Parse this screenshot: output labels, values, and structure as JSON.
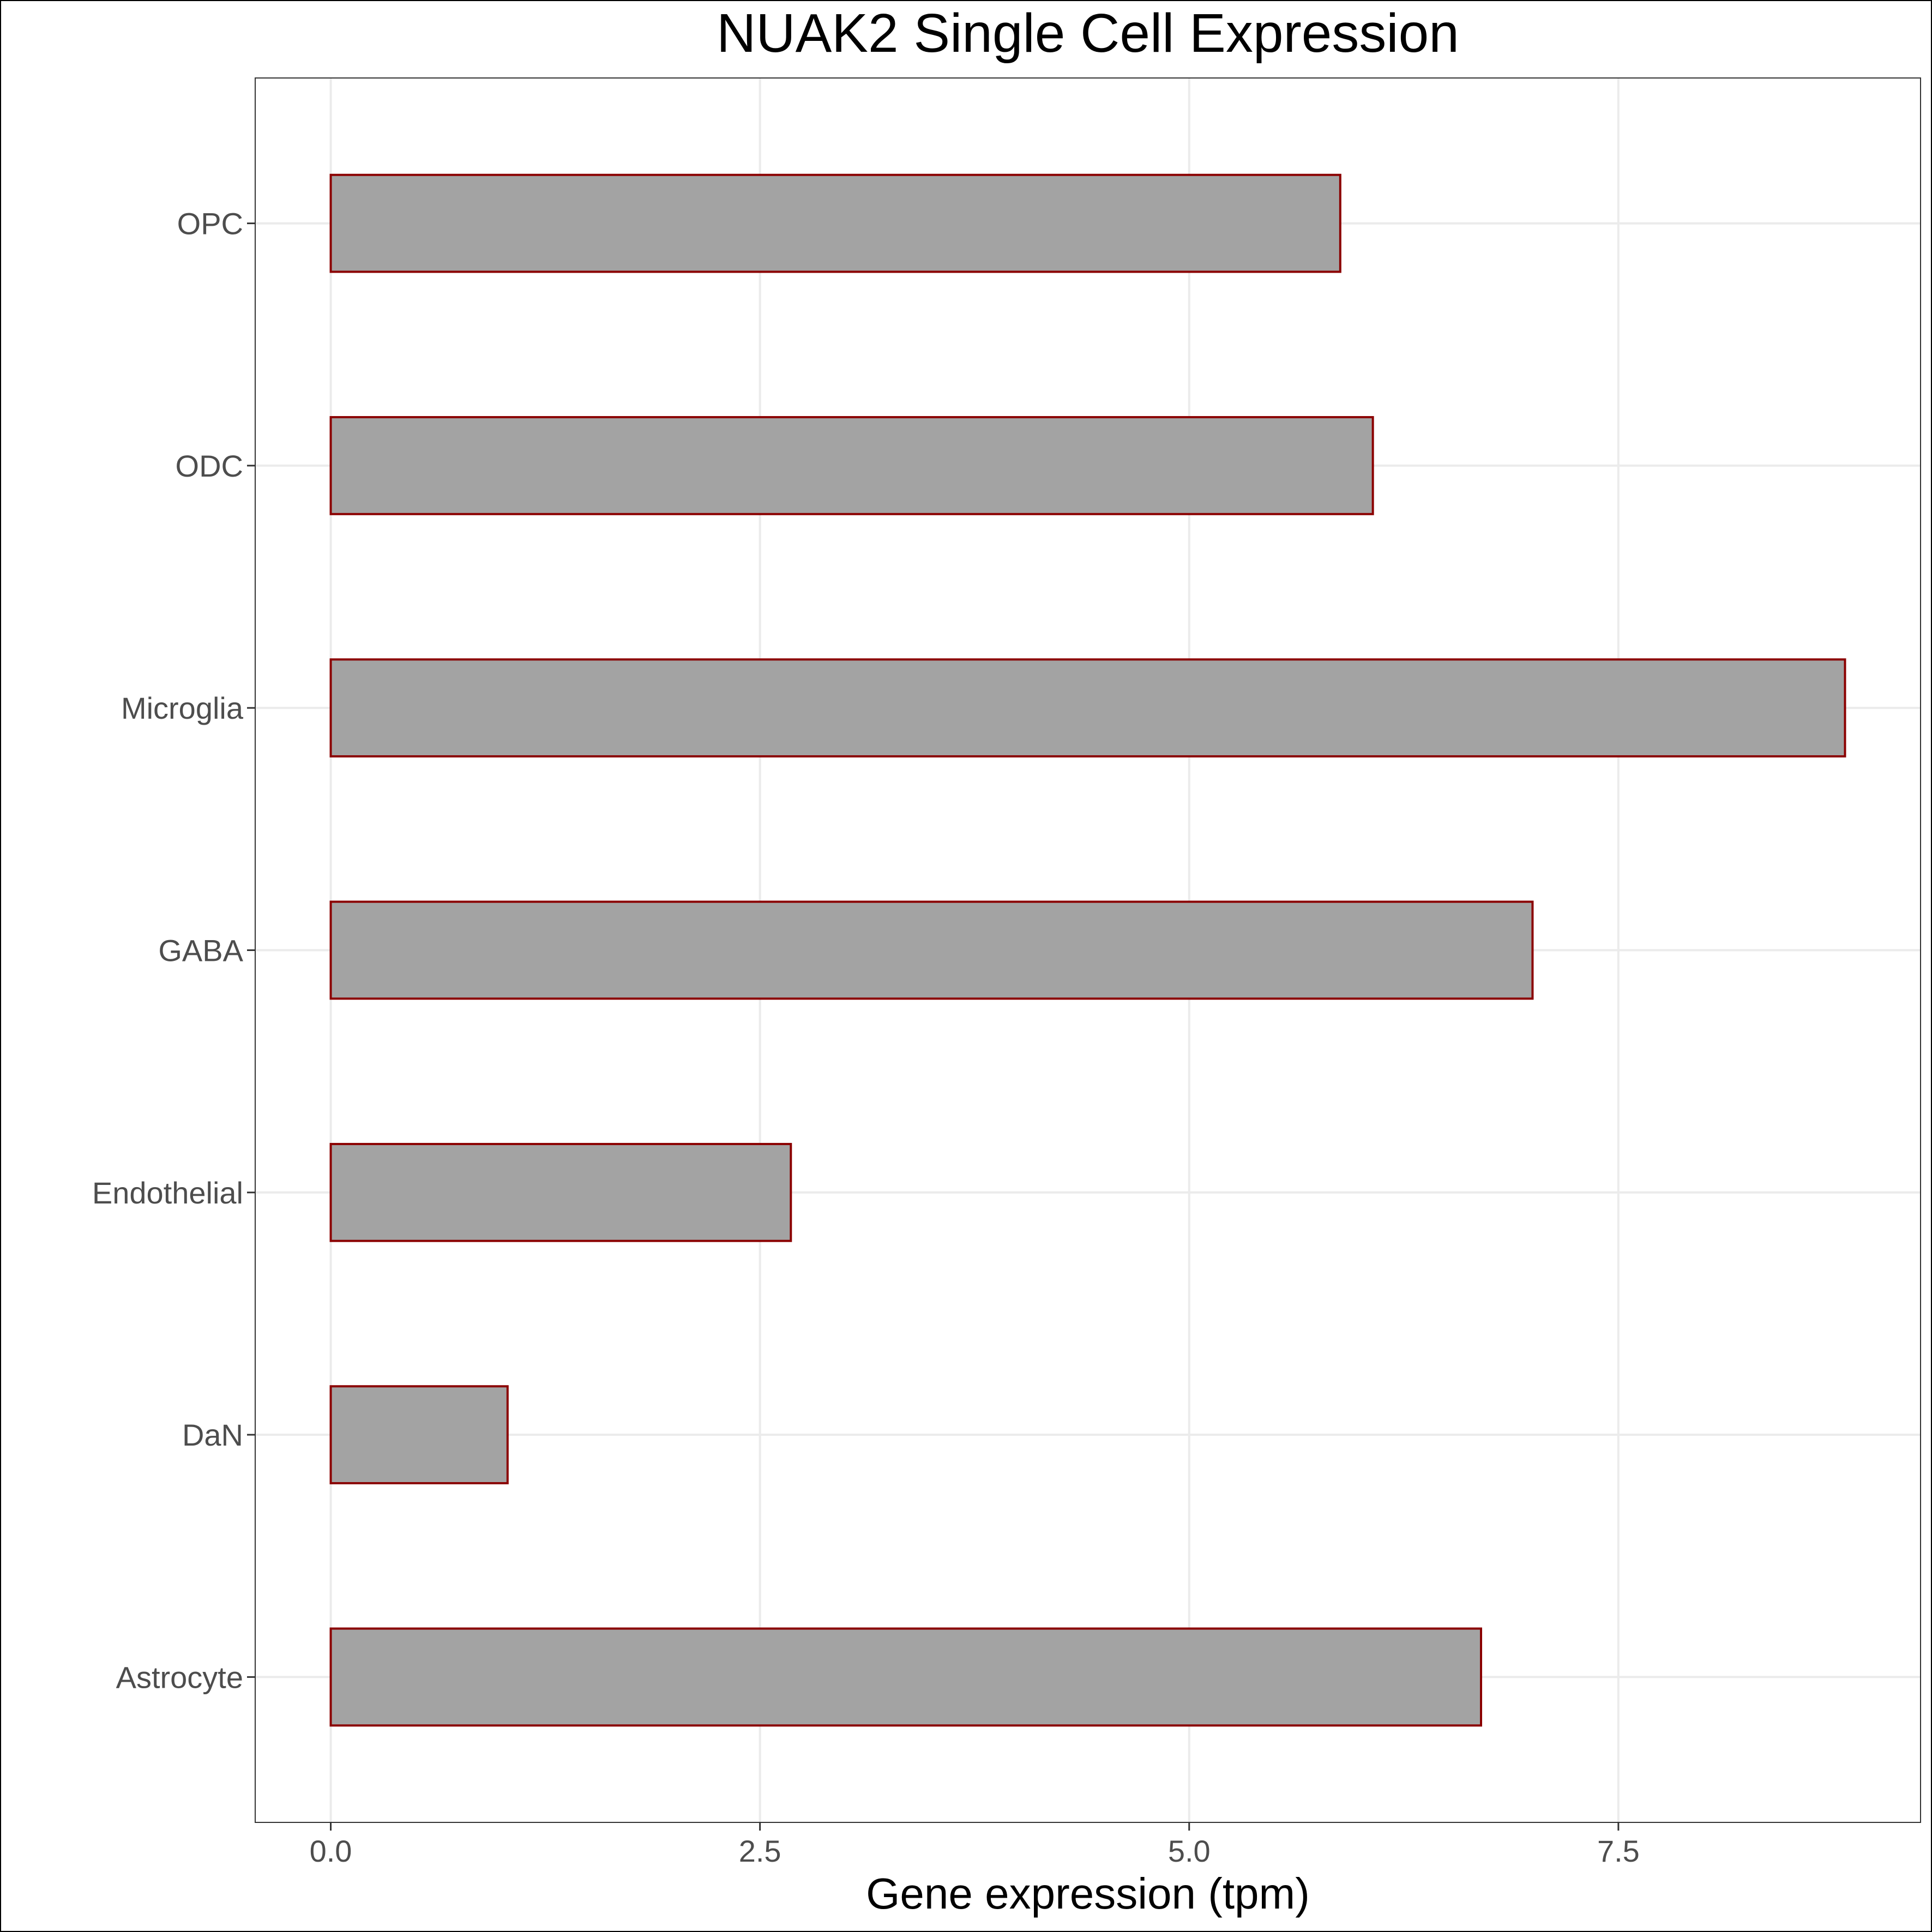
{
  "chart_data": {
    "type": "bar",
    "orientation": "horizontal",
    "title": "NUAK2 Single Cell Expression",
    "xlabel": "Gene expression (tpm)",
    "ylabel": "",
    "categories": [
      "Astrocyte",
      "DaN",
      "Endothelial",
      "GABA",
      "Microglia",
      "ODC",
      "OPC"
    ],
    "values": [
      6.7,
      1.03,
      2.68,
      7.0,
      8.82,
      6.07,
      5.88
    ],
    "xlim": [
      -0.44,
      9.26
    ],
    "xticks": [
      0.0,
      2.5,
      5.0,
      7.5
    ],
    "xtick_labels": [
      "0.0",
      "2.5",
      "5.0",
      "7.5"
    ],
    "grid": true,
    "legend": "none",
    "colors": {
      "bar_fill": "#a3a3a3",
      "bar_edge": "#8b0000",
      "grid": "#ebebeb",
      "panel_border": "#333333",
      "tick_text": "#4d4d4d",
      "title_text": "#000000"
    }
  }
}
